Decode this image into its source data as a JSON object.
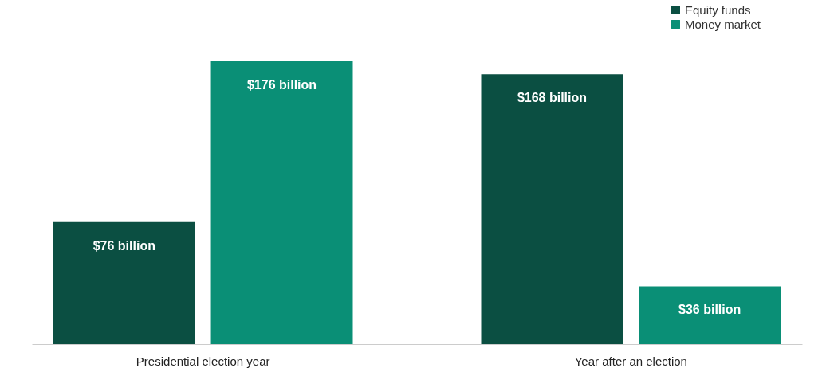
{
  "chart_data": {
    "type": "bar",
    "categories": [
      "Presidential election year",
      "Year after an election"
    ],
    "series": [
      {
        "name": "Equity funds",
        "color": "#0b4f42",
        "values": [
          76,
          168
        ],
        "value_labels": [
          "$76 billion",
          "$168 billion"
        ]
      },
      {
        "name": "Money market",
        "color": "#0a8f76",
        "values": [
          176,
          36
        ],
        "value_labels": [
          "$176 billion",
          "$36 billion"
        ]
      }
    ],
    "legend": "top right"
  }
}
